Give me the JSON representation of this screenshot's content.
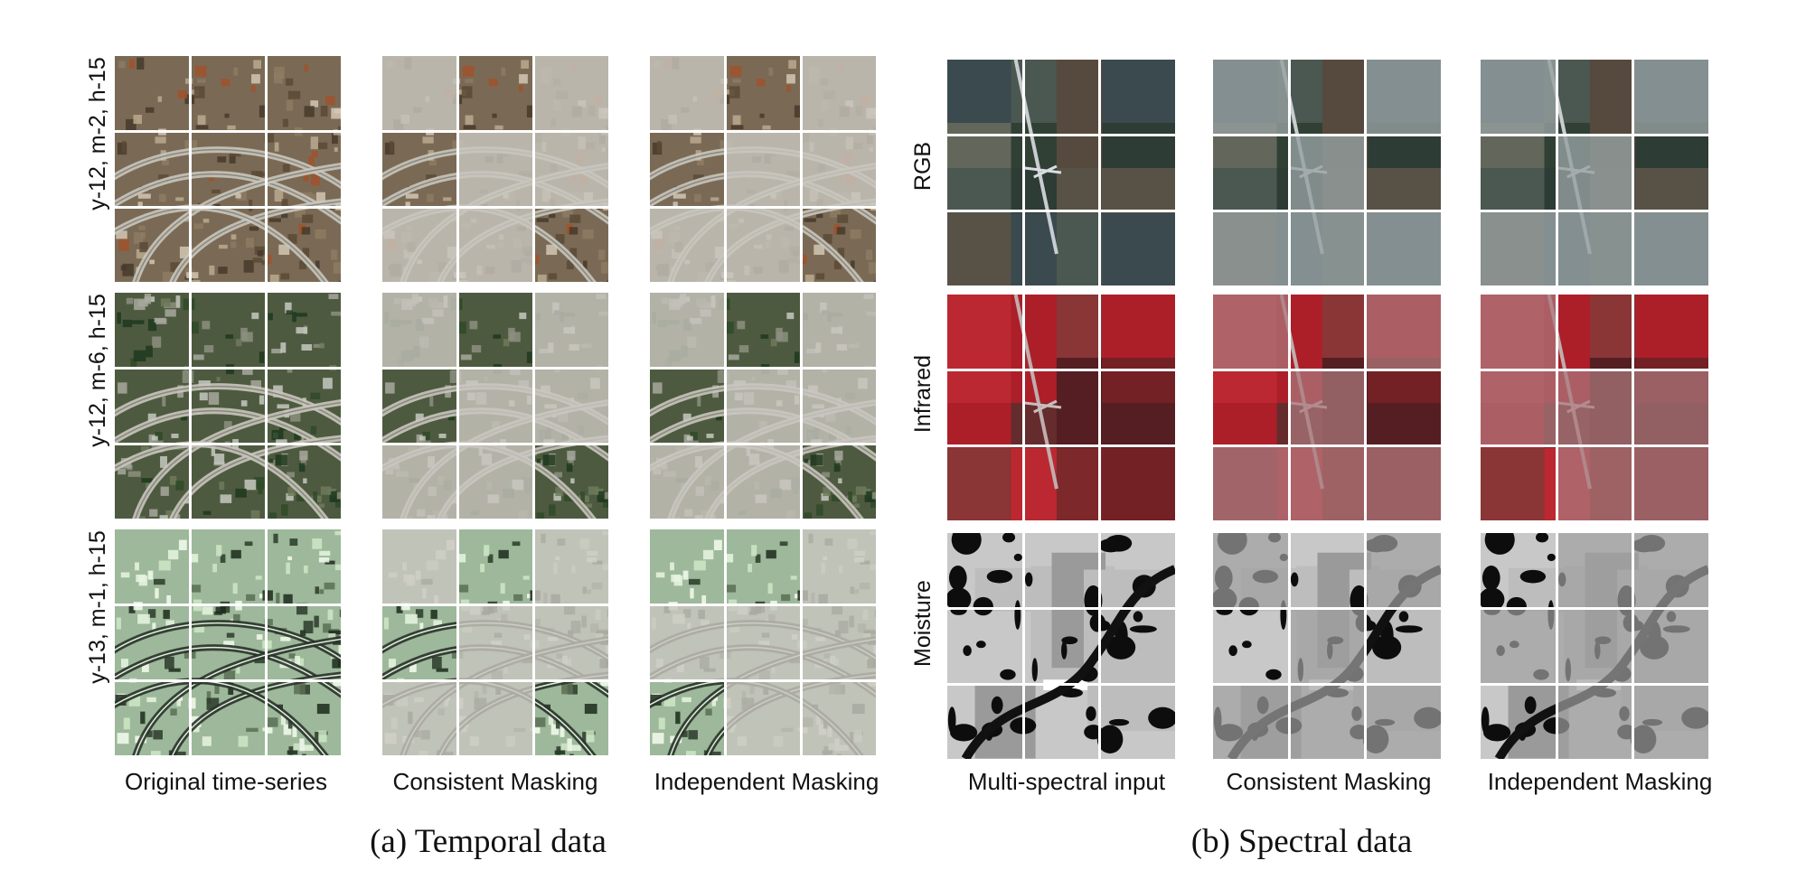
{
  "panel_a": {
    "caption": "(a) Temporal data",
    "row_labels": [
      "y-12, m-2, h-15",
      "y-12, m-6, h-15",
      "y-13, m-1, h-15"
    ],
    "column_labels": [
      "Original time-series",
      "Consistent Masking",
      "Independent Masking"
    ]
  },
  "panel_b": {
    "caption": "(b) Spectral data",
    "row_labels": [
      "RGB",
      "Infrared",
      "Moisture"
    ],
    "column_labels": [
      "Multi-spectral input",
      "Consistent Masking",
      "Independent Masking"
    ]
  },
  "colors": {
    "rgb_base": "#3d4a3e",
    "infrared_base": "#8a1e24",
    "moisture_base": "#c8c8c8",
    "suburb_base": "#7a6a55",
    "spring_base": "#4e5a40",
    "winter_base": "#9db89a"
  }
}
